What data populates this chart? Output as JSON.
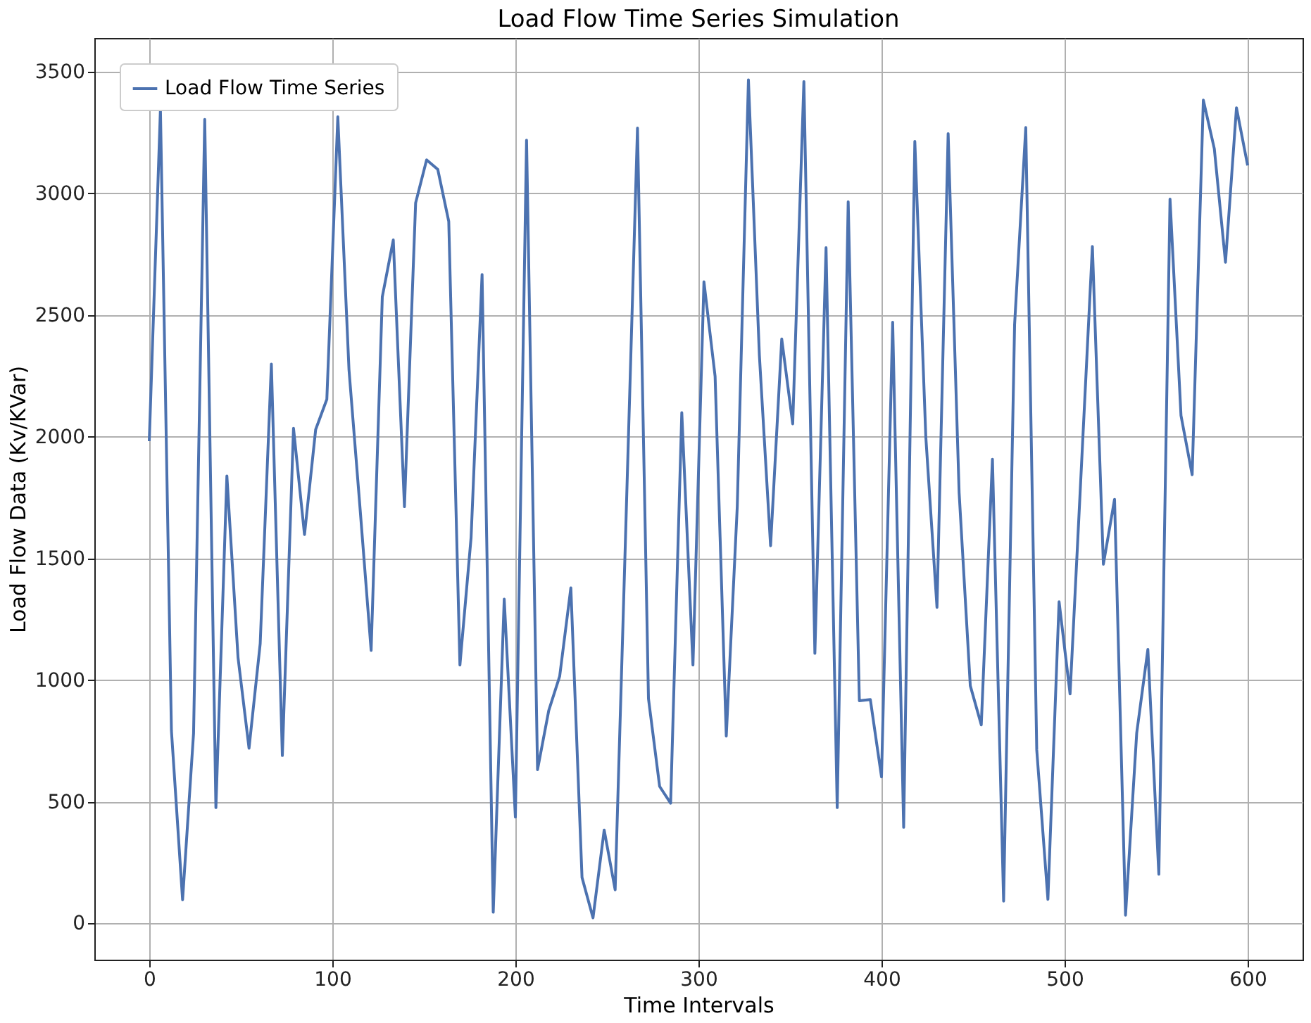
{
  "chart_data": {
    "type": "line",
    "title": "Load Flow Time Series Simulation",
    "xlabel": "Time Intervals",
    "ylabel": "Load Flow Data (Kv/KVar)",
    "x": [
      0,
      6.1,
      12.1,
      18.2,
      24.2,
      30.3,
      36.4,
      42.4,
      48.5,
      54.5,
      60.6,
      66.7,
      72.7,
      78.8,
      84.8,
      90.9,
      97.0,
      103.0,
      109.1,
      115.2,
      121.2,
      127.3,
      133.3,
      139.4,
      145.5,
      151.5,
      157.6,
      163.6,
      169.7,
      175.8,
      181.8,
      187.9,
      193.9,
      200.0,
      206.1,
      212.1,
      218.2,
      224.2,
      230.3,
      236.4,
      242.4,
      248.5,
      254.5,
      260.6,
      266.7,
      272.7,
      278.8,
      284.8,
      290.9,
      297.0,
      303.0,
      309.1,
      315.2,
      321.2,
      327.3,
      333.3,
      339.4,
      345.5,
      351.5,
      357.6,
      363.6,
      369.7,
      375.8,
      381.8,
      387.9,
      393.9,
      400.0,
      406.1,
      412.1,
      418.2,
      424.2,
      430.3,
      436.4,
      442.4,
      448.5,
      454.5,
      460.6,
      466.7,
      472.7,
      478.8,
      484.8,
      490.9,
      497.0,
      503.0,
      509.1,
      515.2,
      521.2,
      527.3,
      533.3,
      539.4,
      545.5,
      551.5,
      557.6,
      563.6,
      569.7,
      575.8,
      581.8,
      587.9,
      593.9,
      600.0
    ],
    "series": [
      {
        "name": "Load Flow Time Series",
        "color": "#4c72b0",
        "values": [
          1982,
          3345,
          793,
          97,
          782,
          3304,
          476,
          1839,
          1092,
          720,
          1150,
          2299,
          690,
          2035,
          1598,
          2030,
          2154,
          3315,
          2276,
          1701,
          1122,
          2575,
          2809,
          1713,
          2961,
          3138,
          3099,
          2885,
          1062,
          1586,
          2667,
          46,
          1333,
          437,
          3219,
          632,
          874,
          1016,
          1379,
          189,
          23,
          384,
          138,
          1700,
          3269,
          924,
          563,
          494,
          2099,
          1062,
          2637,
          2248,
          770,
          1713,
          3467,
          2333,
          1552,
          2402,
          2053,
          3460,
          1110,
          2777,
          476,
          2966,
          915,
          920,
          602,
          2471,
          395,
          3214,
          2000,
          1299,
          3246,
          1770,
          977,
          816,
          1908,
          92,
          2460,
          3271,
          713,
          99,
          1322,
          943,
          1862,
          2782,
          1476,
          1743,
          34,
          782,
          1126,
          202,
          2977,
          2087,
          1844,
          3384,
          3184,
          2717,
          3352,
          3115
        ]
      }
    ],
    "xlim": [
      -30,
      630
    ],
    "ylim": [
      -149,
      3639
    ],
    "xticks": [
      0,
      100,
      200,
      300,
      400,
      500,
      600
    ],
    "yticks": [
      0,
      500,
      1000,
      1500,
      2000,
      2500,
      3000,
      3500
    ],
    "grid": true,
    "legend": "top left",
    "marker": "none",
    "line_style": "solid"
  }
}
